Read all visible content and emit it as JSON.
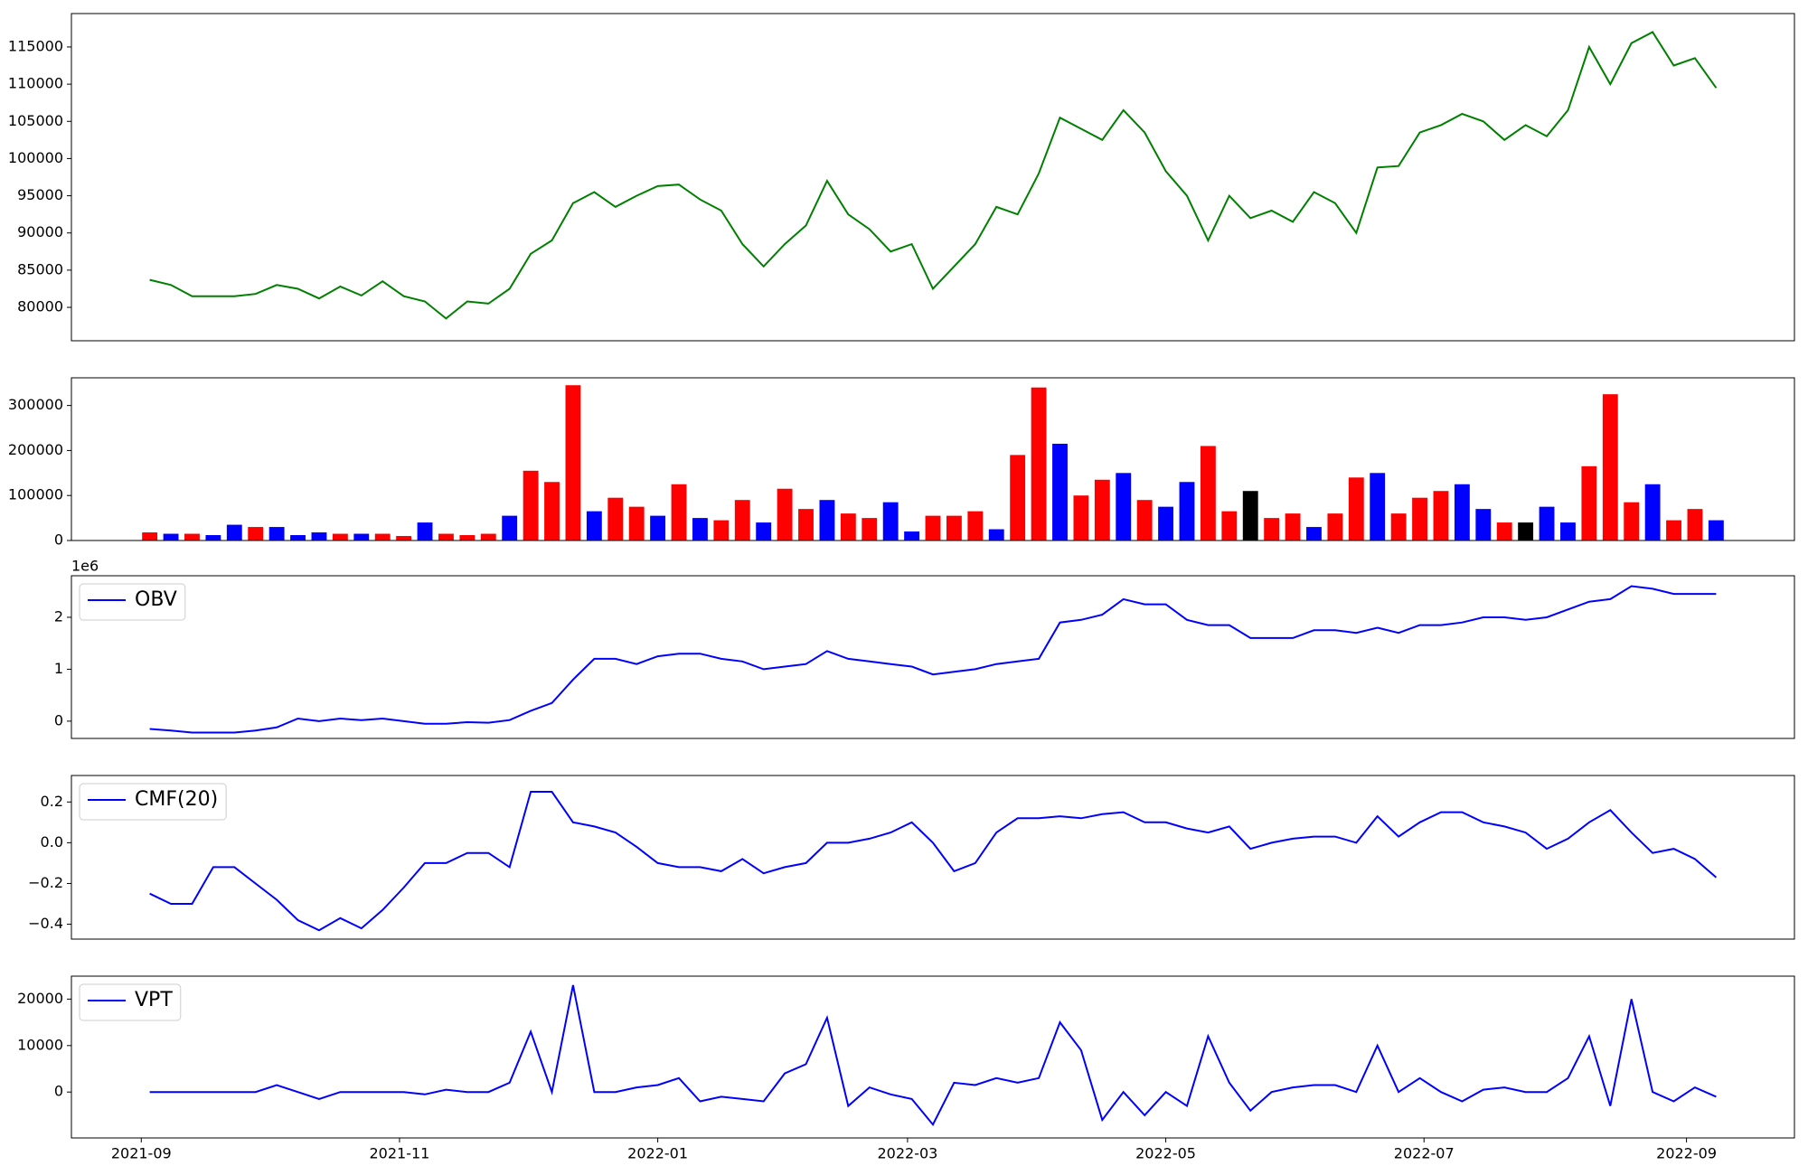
{
  "chart_data": [
    {
      "type": "line",
      "x": [
        2,
        7,
        12,
        17,
        22,
        27,
        32,
        37,
        42,
        47,
        52,
        57,
        62,
        67,
        72,
        77,
        82,
        87,
        92,
        97,
        102,
        107,
        112,
        117,
        122,
        127,
        132,
        137,
        142,
        147,
        152,
        157,
        162,
        167,
        172,
        177,
        182,
        187,
        192,
        197,
        202,
        207,
        212,
        217,
        222,
        227,
        232,
        237,
        242,
        247,
        252,
        257,
        262,
        267,
        272,
        277,
        282,
        287,
        292,
        297,
        302,
        307,
        312,
        317,
        322,
        327,
        332,
        337,
        342,
        347,
        352,
        357,
        362,
        367,
        372
      ],
      "series": [
        {
          "color": "green",
          "values": [
            83700,
            83000,
            81500,
            81500,
            81500,
            81800,
            83000,
            82500,
            81200,
            82800,
            81600,
            83500,
            81500,
            80800,
            78500,
            80800,
            80500,
            82500,
            87200,
            89000,
            94000,
            95500,
            93500,
            95000,
            96300,
            96500,
            94500,
            93000,
            88500,
            85500,
            88500,
            91000,
            97000,
            92500,
            90500,
            87500,
            88500,
            82500,
            85500,
            88500,
            93500,
            92500,
            98000,
            105500,
            104000,
            102500,
            106500,
            103500,
            98300,
            95000,
            89000,
            95000,
            92000,
            93000,
            91500,
            95500,
            94000,
            90000,
            98800,
            99000,
            103500,
            104500,
            106000,
            105000,
            102500,
            104500,
            103000,
            106500,
            115000,
            110000,
            115500,
            117000,
            112500,
            113500,
            109500
          ]
        }
      ],
      "xlim": [
        -16.5,
        390.5
      ],
      "ylim": [
        75510,
        119490
      ],
      "yticks": [
        80000,
        85000,
        90000,
        95000,
        100000,
        105000,
        110000,
        115000
      ]
    },
    {
      "type": "bar",
      "x": [
        2,
        7,
        12,
        17,
        22,
        27,
        32,
        37,
        42,
        47,
        52,
        57,
        62,
        67,
        72,
        77,
        82,
        87,
        92,
        97,
        102,
        107,
        112,
        117,
        122,
        127,
        132,
        137,
        142,
        147,
        152,
        157,
        162,
        167,
        172,
        177,
        182,
        187,
        192,
        197,
        202,
        207,
        212,
        217,
        222,
        227,
        232,
        237,
        242,
        247,
        252,
        257,
        262,
        267,
        272,
        277,
        282,
        287,
        292,
        297,
        302,
        307,
        312,
        317,
        322,
        327,
        332,
        337,
        342,
        347,
        352,
        357,
        362,
        367,
        372
      ],
      "values": [
        18000,
        15000,
        15000,
        12000,
        35000,
        30000,
        30000,
        12000,
        18000,
        15000,
        15000,
        15000,
        10000,
        40000,
        15000,
        12000,
        15000,
        55000,
        155000,
        130000,
        345000,
        65000,
        95000,
        75000,
        55000,
        125000,
        50000,
        45000,
        90000,
        40000,
        115000,
        70000,
        90000,
        60000,
        50000,
        85000,
        20000,
        55000,
        55000,
        65000,
        25000,
        190000,
        340000,
        215000,
        100000,
        135000,
        150000,
        90000,
        75000,
        130000,
        210000,
        65000,
        110000,
        50000,
        60000,
        30000,
        60000,
        140000,
        150000,
        60000,
        95000,
        110000,
        125000,
        70000,
        40000,
        40000,
        75000,
        40000,
        165000,
        325000,
        85000,
        125000,
        45000,
        70000,
        45000
      ],
      "colors": [
        "red",
        "blue",
        "red",
        "blue",
        "blue",
        "red",
        "blue",
        "blue",
        "blue",
        "red",
        "blue",
        "red",
        "red",
        "blue",
        "red",
        "red",
        "red",
        "blue",
        "red",
        "red",
        "red",
        "blue",
        "red",
        "red",
        "blue",
        "red",
        "blue",
        "red",
        "red",
        "blue",
        "red",
        "red",
        "blue",
        "red",
        "red",
        "blue",
        "blue",
        "red",
        "red",
        "red",
        "blue",
        "red",
        "red",
        "blue",
        "red",
        "red",
        "blue",
        "red",
        "blue",
        "blue",
        "red",
        "red",
        "black",
        "red",
        "red",
        "blue",
        "red",
        "red",
        "blue",
        "red",
        "red",
        "red",
        "blue",
        "blue",
        "red",
        "black",
        "blue",
        "blue",
        "red",
        "red",
        "red",
        "blue",
        "red",
        "red",
        "blue"
      ],
      "xlim": [
        -16.5,
        390.5
      ],
      "ylim": [
        0,
        361500
      ],
      "yticks": [
        0,
        100000,
        200000,
        300000
      ]
    },
    {
      "type": "line",
      "x": [
        2,
        7,
        12,
        17,
        22,
        27,
        32,
        37,
        42,
        47,
        52,
        57,
        62,
        67,
        72,
        77,
        82,
        87,
        92,
        97,
        102,
        107,
        112,
        117,
        122,
        127,
        132,
        137,
        142,
        147,
        152,
        157,
        162,
        167,
        172,
        177,
        182,
        187,
        192,
        197,
        202,
        207,
        212,
        217,
        222,
        227,
        232,
        237,
        242,
        247,
        252,
        257,
        262,
        267,
        272,
        277,
        282,
        287,
        292,
        297,
        302,
        307,
        312,
        317,
        322,
        327,
        332,
        337,
        342,
        347,
        352,
        357,
        362,
        367,
        372
      ],
      "series": [
        {
          "name": "OBV",
          "color": "blue",
          "values": [
            -150000,
            -180000,
            -220000,
            -220000,
            -220000,
            -180000,
            -120000,
            50000,
            0,
            50000,
            20000,
            50000,
            0,
            -50000,
            -50000,
            -20000,
            -30000,
            20000,
            200000,
            350000,
            800000,
            1200000,
            1200000,
            1100000,
            1250000,
            1300000,
            1300000,
            1200000,
            1150000,
            1000000,
            1050000,
            1100000,
            1350000,
            1200000,
            1150000,
            1100000,
            1050000,
            900000,
            950000,
            1000000,
            1100000,
            1150000,
            1200000,
            1900000,
            1950000,
            2050000,
            2350000,
            2250000,
            2250000,
            1950000,
            1850000,
            1850000,
            1600000,
            1600000,
            1600000,
            1750000,
            1750000,
            1700000,
            1800000,
            1700000,
            1850000,
            1850000,
            1900000,
            2000000,
            2000000,
            1950000,
            2000000,
            2150000,
            2300000,
            2350000,
            2600000,
            2550000,
            2450000,
            2450000,
            2450000
          ]
        }
      ],
      "offset_label": "1e6",
      "legend": "upper left",
      "xlim": [
        -16.5,
        390.5
      ],
      "ylim": [
        -333000,
        2800000
      ],
      "yticks": [
        0,
        {
          "value": 1000000,
          "label": "1"
        },
        {
          "value": 2000000,
          "label": "2"
        }
      ]
    },
    {
      "type": "line",
      "x": [
        2,
        7,
        12,
        17,
        22,
        27,
        32,
        37,
        42,
        47,
        52,
        57,
        62,
        67,
        72,
        77,
        82,
        87,
        92,
        97,
        102,
        107,
        112,
        117,
        122,
        127,
        132,
        137,
        142,
        147,
        152,
        157,
        162,
        167,
        172,
        177,
        182,
        187,
        192,
        197,
        202,
        207,
        212,
        217,
        222,
        227,
        232,
        237,
        242,
        247,
        252,
        257,
        262,
        267,
        272,
        277,
        282,
        287,
        292,
        297,
        302,
        307,
        312,
        317,
        322,
        327,
        332,
        337,
        342,
        347,
        352,
        357,
        362,
        367,
        372
      ],
      "series": [
        {
          "name": "CMF(20)",
          "color": "blue",
          "values": [
            -0.25,
            -0.3,
            -0.3,
            -0.12,
            -0.12,
            -0.2,
            -0.28,
            -0.38,
            -0.43,
            -0.37,
            -0.42,
            -0.33,
            -0.22,
            -0.1,
            -0.1,
            -0.05,
            -0.05,
            -0.12,
            0.25,
            0.25,
            0.1,
            0.08,
            0.05,
            -0.02,
            -0.1,
            -0.12,
            -0.12,
            -0.14,
            -0.08,
            -0.15,
            -0.12,
            -0.1,
            0,
            0,
            0.02,
            0.05,
            0.1,
            0,
            -0.14,
            -0.1,
            0.05,
            0.12,
            0.12,
            0.13,
            0.12,
            0.14,
            0.15,
            0.1,
            0.1,
            0.07,
            0.05,
            0.08,
            -0.03,
            0,
            0.02,
            0.03,
            0.03,
            0,
            0.13,
            0.03,
            0.1,
            0.15,
            0.15,
            0.1,
            0.08,
            0.05,
            -0.03,
            0.02,
            0.1,
            0.16,
            0.05,
            -0.05,
            -0.03,
            -0.08,
            -0.17
          ]
        }
      ],
      "legend": "upper left",
      "xlim": [
        -16.5,
        390.5
      ],
      "ylim": [
        -0.473,
        0.33
      ],
      "yticks": [
        {
          "value": -0.4,
          "label": "−0.4"
        },
        {
          "value": -0.2,
          "label": "−0.2"
        },
        {
          "value": 0,
          "label": "0.0"
        },
        0.2
      ]
    },
    {
      "type": "line",
      "x": [
        2,
        7,
        12,
        17,
        22,
        27,
        32,
        37,
        42,
        47,
        52,
        57,
        62,
        67,
        72,
        77,
        82,
        87,
        92,
        97,
        102,
        107,
        112,
        117,
        122,
        127,
        132,
        137,
        142,
        147,
        152,
        157,
        162,
        167,
        172,
        177,
        182,
        187,
        192,
        197,
        202,
        207,
        212,
        217,
        222,
        227,
        232,
        237,
        242,
        247,
        252,
        257,
        262,
        267,
        272,
        277,
        282,
        287,
        292,
        297,
        302,
        307,
        312,
        317,
        322,
        327,
        332,
        337,
        342,
        347,
        352,
        357,
        362,
        367,
        372
      ],
      "series": [
        {
          "name": "VPT",
          "color": "blue",
          "values": [
            0,
            0,
            0,
            0,
            0,
            0,
            1500,
            0,
            -1500,
            0,
            0,
            0,
            0,
            -500,
            500,
            0,
            0,
            2000,
            13000,
            0,
            23000,
            0,
            0,
            1000,
            1500,
            3000,
            -2000,
            -1000,
            -1500,
            -2000,
            4000,
            6000,
            16000,
            -3000,
            1000,
            -500,
            -1500,
            -7000,
            2000,
            1500,
            3000,
            2000,
            3000,
            15000,
            9000,
            -6000,
            0,
            -5000,
            0,
            -3000,
            12000,
            2000,
            -4000,
            0,
            1000,
            1500,
            1500,
            0,
            10000,
            0,
            3000,
            0,
            -2000,
            500,
            1000,
            0,
            0,
            3000,
            12000,
            -3000,
            20000,
            0,
            -2000,
            1000,
            -1000
          ]
        }
      ],
      "legend": "upper left",
      "xlim": [
        -16.5,
        390.5
      ],
      "ylim": [
        -9880,
        24940
      ],
      "yticks": [
        0,
        10000,
        20000
      ],
      "xticks": [
        {
          "value": 0,
          "label": "2021-09"
        },
        {
          "value": 61,
          "label": "2021-11"
        },
        {
          "value": 122,
          "label": "2022-01"
        },
        {
          "value": 181,
          "label": "2022-03"
        },
        {
          "value": 242,
          "label": "2022-05"
        },
        {
          "value": 303,
          "label": "2022-07"
        },
        {
          "value": 365,
          "label": "2022-09"
        }
      ]
    }
  ]
}
